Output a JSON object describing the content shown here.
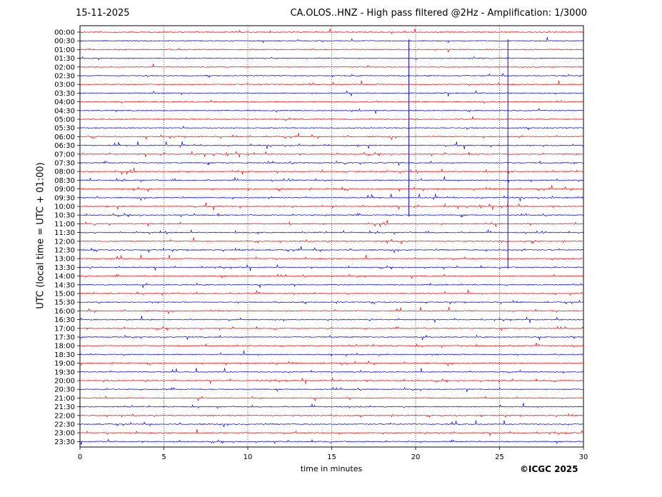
{
  "header": {
    "date": "15-11-2025",
    "title": "CA.OLOS..HNZ - High pass filtered @2Hz - Amplification: 1/3000"
  },
  "credit": "©ICGC 2025",
  "chart_data": {
    "type": "line",
    "title": "CA.OLOS..HNZ - High pass filtered @2Hz - Amplification: 1/3000",
    "xlabel": "time in minutes",
    "ylabel": "UTC (local time = UTC + 01:00)",
    "xlim": [
      0,
      30
    ],
    "x_ticks": [
      0,
      5,
      10,
      15,
      20,
      25,
      30
    ],
    "vertical_gridlines": [
      5,
      10,
      15,
      20,
      25
    ],
    "rows": [
      "00:00",
      "00:30",
      "01:00",
      "01:30",
      "02:00",
      "02:30",
      "03:00",
      "03:30",
      "04:00",
      "04:30",
      "05:00",
      "05:30",
      "06:00",
      "06:30",
      "07:00",
      "07:30",
      "08:00",
      "08:30",
      "09:00",
      "09:30",
      "10:00",
      "10:30",
      "11:00",
      "11:30",
      "12:00",
      "12:30",
      "13:00",
      "13:30",
      "14:00",
      "14:30",
      "15:00",
      "15:30",
      "16:00",
      "16:30",
      "17:00",
      "17:30",
      "18:00",
      "18:30",
      "19:00",
      "19:30",
      "20:00",
      "20:30",
      "21:00",
      "21:30",
      "22:00",
      "22:30",
      "23:00",
      "23:30"
    ],
    "trace_colors": [
      "#ff0000",
      "#0000ff"
    ],
    "large_events": [
      {
        "minute": 19.6,
        "from_row": "00:30",
        "to_row": "10:30",
        "color": "#0000ff"
      },
      {
        "minute": 25.5,
        "from_row": "00:30",
        "to_row": "13:30",
        "color": "#0000ff"
      }
    ]
  }
}
